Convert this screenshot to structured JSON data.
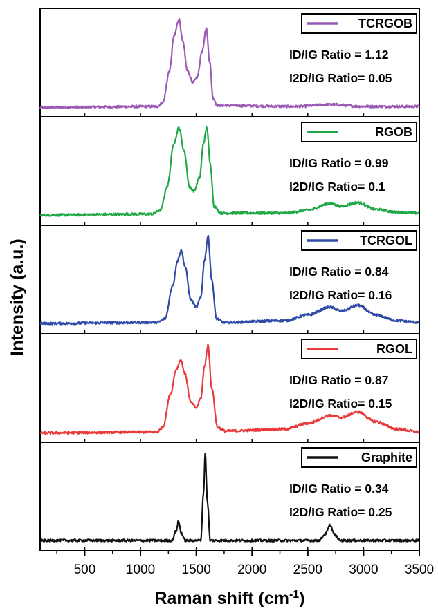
{
  "chart_data": {
    "type": "line",
    "title": "",
    "xlabel": "Raman shift (cm",
    "xlabel_sup": "-1",
    "xlabel_close": ")",
    "ylabel": "Intensity (a.u.)",
    "xlim": [
      100,
      3500
    ],
    "ylim": [
      0,
      1
    ],
    "x_ticks": [
      500,
      1000,
      1500,
      2000,
      2500,
      3000,
      3500
    ],
    "x_tick_labels": [
      "500",
      "1000",
      "1500",
      "2000",
      "2500",
      "3000",
      "3500"
    ],
    "grid": false,
    "legend_position": "top-right of each panel",
    "series": [
      {
        "name": "TCRGOB",
        "color": "#9b59b6",
        "ratio_lines": [
          "ID/IG Ratio  = 1.12",
          "I2D/IG Ratio= 0.05"
        ],
        "points": [
          [
            100,
            0.04
          ],
          [
            1150,
            0.05
          ],
          [
            1200,
            0.09
          ],
          [
            1260,
            0.42
          ],
          [
            1300,
            0.78
          ],
          [
            1345,
            0.96
          ],
          [
            1380,
            0.72
          ],
          [
            1420,
            0.42
          ],
          [
            1470,
            0.3
          ],
          [
            1510,
            0.36
          ],
          [
            1550,
            0.62
          ],
          [
            1590,
            0.86
          ],
          [
            1620,
            0.52
          ],
          [
            1650,
            0.14
          ],
          [
            1690,
            0.06
          ],
          [
            2400,
            0.05
          ],
          [
            2700,
            0.07
          ],
          [
            3000,
            0.05
          ],
          [
            3500,
            0.05
          ]
        ]
      },
      {
        "name": "RGOB",
        "color": "#1fa845",
        "ratio_lines": [
          "ID/IG Ratio  = 0.99",
          "I2D/IG Ratio= 0.1"
        ],
        "points": [
          [
            100,
            0.05
          ],
          [
            1100,
            0.06
          ],
          [
            1180,
            0.1
          ],
          [
            1240,
            0.35
          ],
          [
            1300,
            0.8
          ],
          [
            1345,
            0.96
          ],
          [
            1390,
            0.72
          ],
          [
            1440,
            0.34
          ],
          [
            1480,
            0.3
          ],
          [
            1530,
            0.44
          ],
          [
            1565,
            0.8
          ],
          [
            1595,
            0.96
          ],
          [
            1625,
            0.58
          ],
          [
            1660,
            0.14
          ],
          [
            1720,
            0.07
          ],
          [
            2300,
            0.07
          ],
          [
            2500,
            0.1
          ],
          [
            2700,
            0.17
          ],
          [
            2800,
            0.14
          ],
          [
            2950,
            0.18
          ],
          [
            3100,
            0.11
          ],
          [
            3300,
            0.08
          ],
          [
            3500,
            0.07
          ]
        ]
      },
      {
        "name": "TCRGOL",
        "color": "#2f4aa8",
        "ratio_lines": [
          "ID/IG Ratio  = 0.84",
          "I2D/IG Ratio= 0.16"
        ],
        "points": [
          [
            100,
            0.05
          ],
          [
            1150,
            0.06
          ],
          [
            1220,
            0.1
          ],
          [
            1290,
            0.45
          ],
          [
            1330,
            0.7
          ],
          [
            1365,
            0.81
          ],
          [
            1400,
            0.64
          ],
          [
            1450,
            0.3
          ],
          [
            1500,
            0.22
          ],
          [
            1540,
            0.32
          ],
          [
            1575,
            0.72
          ],
          [
            1605,
            0.96
          ],
          [
            1640,
            0.5
          ],
          [
            1680,
            0.1
          ],
          [
            1750,
            0.06
          ],
          [
            2300,
            0.08
          ],
          [
            2500,
            0.14
          ],
          [
            2700,
            0.22
          ],
          [
            2800,
            0.18
          ],
          [
            2950,
            0.24
          ],
          [
            3100,
            0.14
          ],
          [
            3300,
            0.08
          ],
          [
            3500,
            0.06
          ]
        ]
      },
      {
        "name": "RGOL",
        "color": "#e83a3a",
        "ratio_lines": [
          "ID/IG Ratio  = 0.87",
          "I2D/IG Ratio= 0.15"
        ],
        "points": [
          [
            100,
            0.04
          ],
          [
            1150,
            0.05
          ],
          [
            1200,
            0.1
          ],
          [
            1270,
            0.45
          ],
          [
            1320,
            0.7
          ],
          [
            1360,
            0.8
          ],
          [
            1400,
            0.65
          ],
          [
            1450,
            0.36
          ],
          [
            1500,
            0.3
          ],
          [
            1540,
            0.4
          ],
          [
            1575,
            0.74
          ],
          [
            1605,
            0.95
          ],
          [
            1640,
            0.5
          ],
          [
            1690,
            0.1
          ],
          [
            1760,
            0.06
          ],
          [
            2300,
            0.08
          ],
          [
            2500,
            0.14
          ],
          [
            2700,
            0.22
          ],
          [
            2800,
            0.2
          ],
          [
            2950,
            0.26
          ],
          [
            3100,
            0.16
          ],
          [
            3300,
            0.08
          ],
          [
            3500,
            0.05
          ]
        ]
      },
      {
        "name": "Graphite",
        "color": "#111111",
        "ratio_lines": [
          "ID/IG Ratio  = 0.34",
          "I2D/IG Ratio= 0.25"
        ],
        "points": [
          [
            100,
            0.05
          ],
          [
            1280,
            0.05
          ],
          [
            1320,
            0.15
          ],
          [
            1340,
            0.25
          ],
          [
            1365,
            0.13
          ],
          [
            1400,
            0.05
          ],
          [
            1540,
            0.05
          ],
          [
            1565,
            0.55
          ],
          [
            1580,
            0.96
          ],
          [
            1600,
            0.45
          ],
          [
            1625,
            0.05
          ],
          [
            2600,
            0.05
          ],
          [
            2660,
            0.12
          ],
          [
            2700,
            0.21
          ],
          [
            2740,
            0.11
          ],
          [
            2790,
            0.05
          ],
          [
            3500,
            0.05
          ]
        ]
      }
    ]
  }
}
